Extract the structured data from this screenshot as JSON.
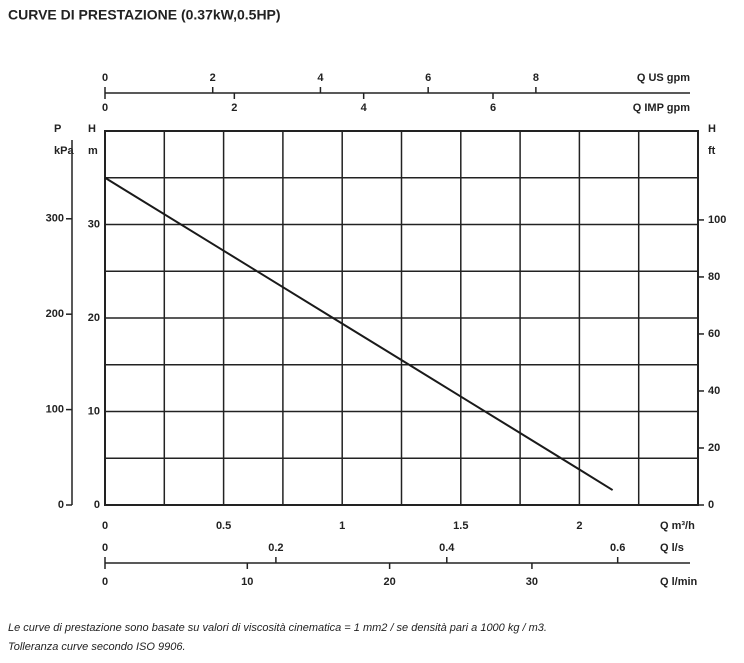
{
  "chart_data": {
    "type": "line",
    "title": "CURVE DI PRESTAZIONE (0.37kW,0.5HP)",
    "xlabel": "Q m³/h",
    "ylabel": [
      "H",
      "m"
    ],
    "x": [
      0,
      0.5,
      1,
      1.5,
      2,
      2.14
    ],
    "values": [
      35,
      27.2,
      19.4,
      11.6,
      3.8,
      1.6
    ],
    "color": "#1a1a1a",
    "xlim": [
      0,
      2.5
    ],
    "xticks": [
      0,
      0.5,
      1,
      1.5,
      2
    ],
    "xgrid": [
      0.25,
      0.75,
      1.25,
      1.75,
      2.25
    ],
    "ylim": [
      0,
      40
    ],
    "yticks": [
      0,
      10,
      20,
      30
    ],
    "ygrid": [
      5,
      15,
      25,
      35
    ],
    "grid": true,
    "extra_x_axes": [
      {
        "label": "Q US gpm",
        "lim": [
          0,
          11.01
        ],
        "ticks": [
          0,
          2,
          4,
          6,
          8
        ]
      },
      {
        "label": "Q IMP gpm",
        "lim": [
          0,
          9.17
        ],
        "ticks": [
          0,
          2,
          4,
          6
        ]
      },
      {
        "label": "Q l/s",
        "lim": [
          0,
          0.694
        ],
        "ticks": [
          0,
          0.2,
          0.4,
          0.6
        ]
      },
      {
        "label": "Q l/min",
        "lim": [
          0,
          41.67
        ],
        "ticks": [
          0,
          10,
          20,
          30
        ]
      }
    ],
    "extra_y_axes": [
      {
        "label": [
          "P",
          "kPa"
        ],
        "lim": [
          0,
          392
        ],
        "ticks": [
          0,
          100,
          200,
          300
        ]
      },
      {
        "label": [
          "H",
          "ft"
        ],
        "lim": [
          0,
          131.2
        ],
        "ticks": [
          0,
          20,
          40,
          60,
          80,
          100
        ]
      }
    ],
    "notes": [
      "Le curve di prestazione sono basate su valori di viscosità cinematica = 1 mm2 / se densità pari a 1000 kg / m3.",
      "Tolleranza curve secondo ISO 9906."
    ]
  }
}
